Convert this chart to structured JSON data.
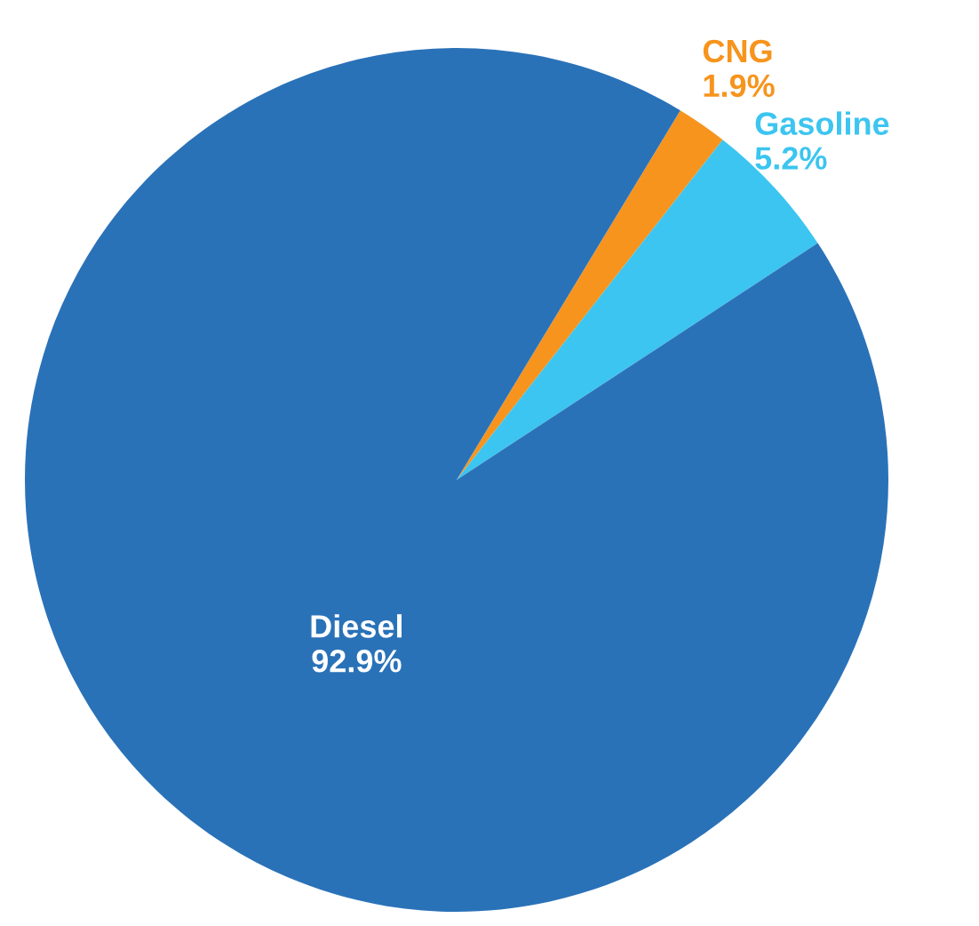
{
  "chart_data": {
    "type": "pie",
    "categories": [
      "CNG",
      "Gasoline",
      "Diesel"
    ],
    "values": [
      1.9,
      5.2,
      92.9
    ],
    "colors": [
      "#f7941d",
      "#3cc5f0",
      "#2a72b8"
    ],
    "value_labels": [
      "1.9%",
      "5.2%",
      "92.9%"
    ]
  }
}
